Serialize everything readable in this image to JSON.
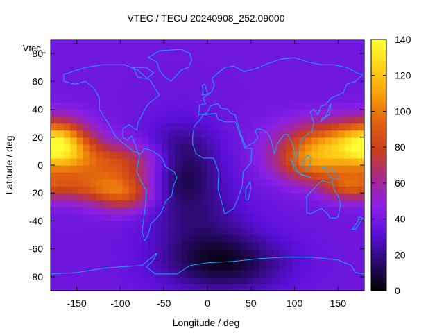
{
  "chart_data": {
    "type": "heatmap",
    "title": "VTEC / TECU 20240908_252.09000",
    "xlabel": "Longitude / deg",
    "ylabel": "Latitude / deg",
    "key_label": "'Vtec_",
    "xlim": [
      -180,
      180
    ],
    "ylim": [
      -90,
      90
    ],
    "x_ticks": [
      -150,
      -100,
      -50,
      0,
      50,
      100,
      150
    ],
    "y_ticks": [
      -80,
      -60,
      -40,
      -20,
      0,
      20,
      40,
      60,
      80
    ],
    "colorbar": {
      "min": 0,
      "max": 140,
      "ticks": [
        0,
        20,
        40,
        60,
        80,
        100,
        120,
        140
      ]
    },
    "colormap": [
      "#000000",
      "#2a0a6e",
      "#5a0fd8",
      "#8a20e6",
      "#a52a8f",
      "#c83c1c",
      "#e06010",
      "#f59d0a",
      "#ffd21a",
      "#ffff33"
    ],
    "coastline_color": "#1aa7ff",
    "grid_lon_step": 7.5,
    "grid_lat_step": 5,
    "tec_blobs": [
      {
        "lon": -170,
        "lat": 15,
        "amp": 70,
        "slon": 25,
        "slat": 12
      },
      {
        "lon": -110,
        "lat": 2,
        "amp": 45,
        "slon": 45,
        "slat": 10
      },
      {
        "lon": -145,
        "lat": -15,
        "amp": 35,
        "slon": 35,
        "slat": 8
      },
      {
        "lon": -95,
        "lat": -20,
        "amp": 45,
        "slon": 25,
        "slat": 9
      },
      {
        "lon": 140,
        "lat": 15,
        "amp": 60,
        "slon": 40,
        "slat": 12
      },
      {
        "lon": 120,
        "lat": 0,
        "amp": 40,
        "slon": 30,
        "slat": 10
      },
      {
        "lon": 160,
        "lat": -15,
        "amp": 35,
        "slon": 20,
        "slat": 7
      },
      {
        "lon": -30,
        "lat": 0,
        "amp": -30,
        "slon": 30,
        "slat": 20
      },
      {
        "lon": 20,
        "lat": -70,
        "amp": -30,
        "slon": 50,
        "slat": 15
      },
      {
        "lon": -10,
        "lat": -40,
        "amp": -15,
        "slon": 40,
        "slat": 20
      }
    ],
    "tec_baseline": 38
  }
}
